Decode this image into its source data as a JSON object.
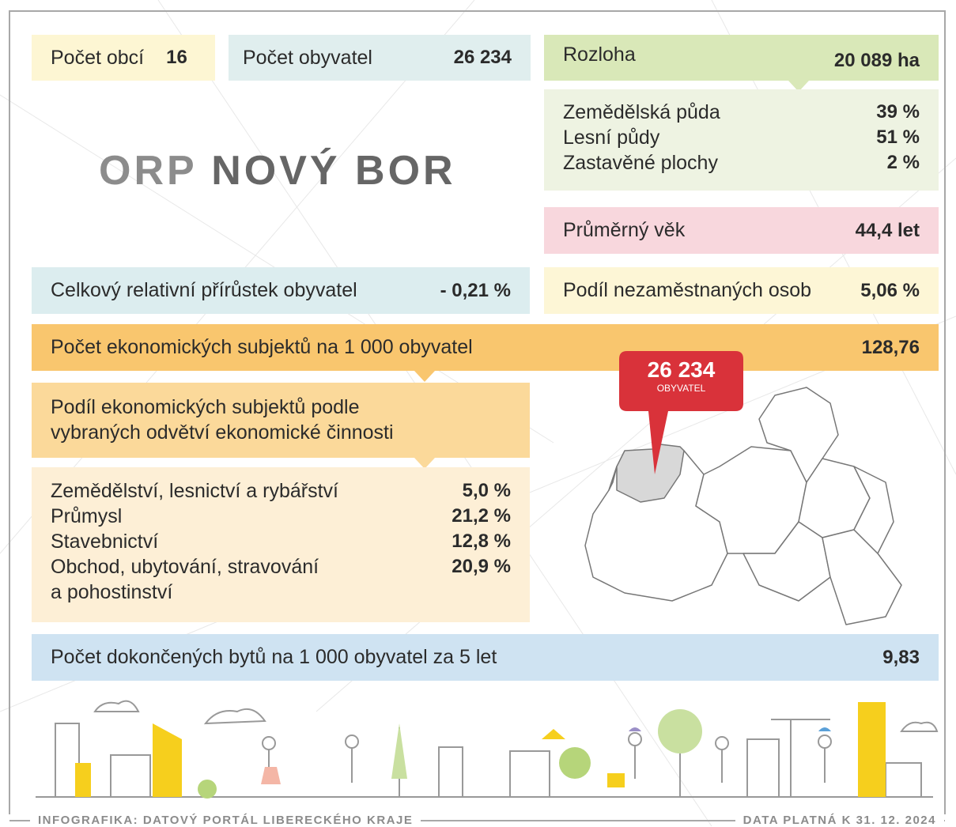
{
  "title": {
    "prefix": "ORP",
    "name": "NOVÝ BOR"
  },
  "municipalities": {
    "label": "Počet obcí",
    "value": "16"
  },
  "population": {
    "label": "Počet obyvatel",
    "value": "26 234"
  },
  "area": {
    "label": "Rozloha",
    "value": "20 089 ha",
    "breakdown": [
      {
        "label": "Zemědělská půda",
        "value": "39 %"
      },
      {
        "label": "Lesní půdy",
        "value": "51 %"
      },
      {
        "label": "Zastavěné plochy",
        "value": "2 %"
      }
    ]
  },
  "average_age": {
    "label": "Průměrný věk",
    "value": "44,4 let"
  },
  "population_growth": {
    "label": "Celkový relativní přírůstek obyvatel",
    "value": "- 0,21 %"
  },
  "unemployment": {
    "label": "Podíl nezaměstnaných osob",
    "value": "5,06 %"
  },
  "economic_subjects": {
    "label": "Počet ekonomických subjektů na 1 000 obyvatel",
    "value": "128,76"
  },
  "sector_share": {
    "lines": [
      "Podíl ekonomických subjektů podle",
      "vybraných odvětví ekonomické činnosti"
    ],
    "items": [
      {
        "lines": [
          "Zemědělství, lesnictví a rybářství"
        ],
        "value": "5,0 %"
      },
      {
        "lines": [
          "Průmysl"
        ],
        "value": "21,2 %"
      },
      {
        "lines": [
          "Stavebnictví"
        ],
        "value": "12,8 %"
      },
      {
        "lines": [
          "Obchod, ubytování, stravování",
          "a pohostinství"
        ],
        "value": "20,9 %"
      }
    ]
  },
  "map_callout": {
    "value": "26 234",
    "label": "OBYVATEL"
  },
  "dwellings": {
    "label": "Počet dokončených bytů na 1 000 obyvatel za 5 let",
    "value": "9,83"
  },
  "footer": {
    "source": "INFOGRAFIKA: DATOVÝ PORTÁL LIBERECKÉHO KRAJE",
    "validity": "DATA PLATNÁ K 31. 12. 2024"
  }
}
